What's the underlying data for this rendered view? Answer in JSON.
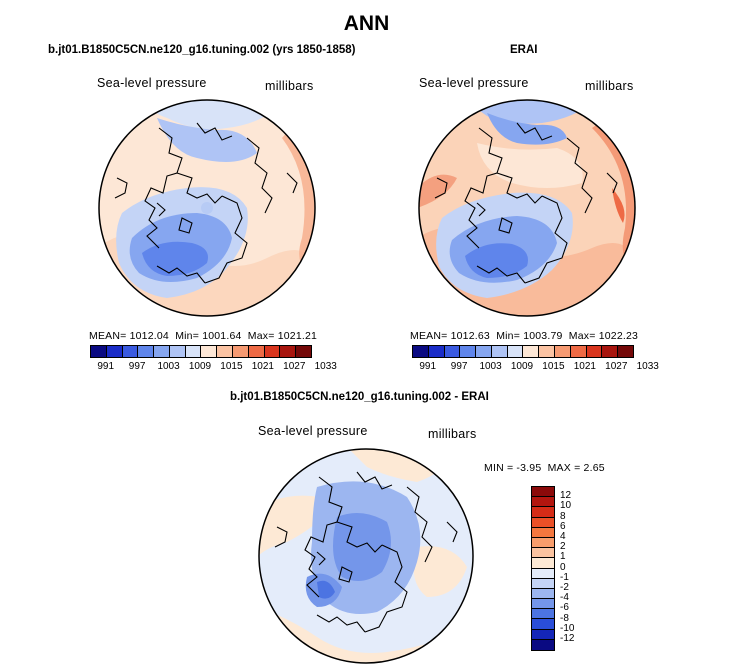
{
  "title": "ANN",
  "panels": [
    {
      "title": "b.jt01.B1850C5CN.ne120_g16.tuning.002 (yrs 1850-1858)",
      "variable": "Sea-level pressure",
      "units": "millibars",
      "stats": {
        "mean_label": "MEAN=",
        "mean": "1012.04",
        "min_label": "Min=",
        "min": "1001.64",
        "max_label": "Max=",
        "max": "1021.21"
      }
    },
    {
      "title": "ERAI",
      "variable": "Sea-level pressure",
      "units": "millibars",
      "stats": {
        "mean_label": "MEAN=",
        "mean": "1012.63",
        "min_label": "Min=",
        "min": "1003.79",
        "max_label": "Max=",
        "max": "1022.23"
      }
    },
    {
      "title": "b.jt01.B1850C5CN.ne120_g16.tuning.002 - ERAI",
      "variable": "Sea-level pressure",
      "units": "millibars",
      "stats": {
        "min_label": "MIN =",
        "min": "-3.95",
        "max_label": "MAX =",
        "max": "2.65"
      }
    }
  ],
  "colorbar_field": {
    "colors": [
      "#0a0a82",
      "#1a2cc8",
      "#3a5ae0",
      "#5f85eb",
      "#86a6f0",
      "#afc4f5",
      "#d8e3f8",
      "#fde7d6",
      "#fbc3a3",
      "#f69a72",
      "#ee6a45",
      "#d9351e",
      "#a8150e",
      "#740808"
    ],
    "labels": [
      "991",
      "997",
      "1003",
      "1009",
      "1015",
      "1021",
      "1027",
      "1033"
    ]
  },
  "colorbar_diff": {
    "colors": [
      "#8b0a0a",
      "#b3160f",
      "#d52c17",
      "#ea5027",
      "#f4773f",
      "#f89d6c",
      "#fbc3a0",
      "#fde9d5",
      "#e4ecfa",
      "#c4d4f6",
      "#9cb6f0",
      "#7496ea",
      "#4c74e2",
      "#2a4ed9",
      "#1426b8",
      "#0a0a82"
    ],
    "labels": [
      "12",
      "10",
      "8",
      "6",
      "4",
      "2",
      "1",
      "0",
      "-1",
      "-2",
      "-4",
      "-6",
      "-8",
      "-10",
      "-12"
    ]
  }
}
